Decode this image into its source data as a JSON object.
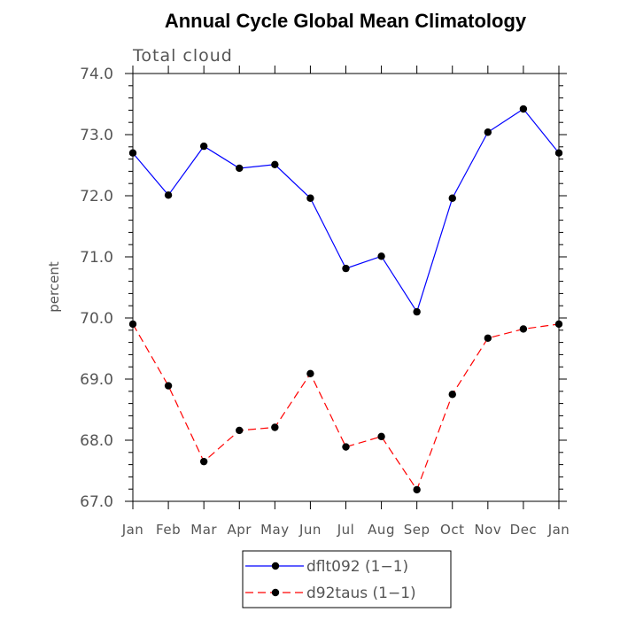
{
  "chart_data": {
    "type": "line",
    "title": "Annual Cycle Global Mean Climatology",
    "subtitle": "Total cloud",
    "xlabel": "",
    "ylabel": "percent",
    "categories": [
      "Jan",
      "Feb",
      "Mar",
      "Apr",
      "May",
      "Jun",
      "Jul",
      "Aug",
      "Sep",
      "Oct",
      "Nov",
      "Dec",
      "Jan"
    ],
    "ylim": [
      67.0,
      74.0
    ],
    "yticks": [
      "67.0",
      "68.0",
      "69.0",
      "70.0",
      "71.0",
      "72.0",
      "73.0",
      "74.0"
    ],
    "y_minor_step": 0.2,
    "legend_position": "bottom-center",
    "series": [
      {
        "name": "dflt092 (1−1)",
        "color": "#0000ff",
        "dash": "solid",
        "marker_color": "#000000",
        "values": [
          72.7,
          72.01,
          72.81,
          72.45,
          72.51,
          71.96,
          70.81,
          71.01,
          70.1,
          71.96,
          73.04,
          73.42,
          72.7
        ]
      },
      {
        "name": "d92taus (1−1)",
        "color": "#ff0000",
        "dash": "dashed",
        "marker_color": "#000000",
        "values": [
          69.9,
          68.89,
          67.65,
          68.16,
          68.21,
          69.09,
          67.89,
          68.06,
          67.19,
          68.75,
          69.67,
          69.82,
          69.9
        ]
      }
    ]
  }
}
